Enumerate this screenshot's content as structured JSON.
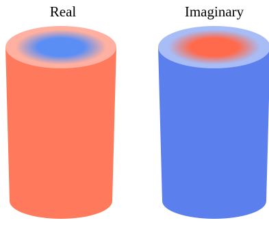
{
  "panels": [
    {
      "title": "Real",
      "side_color": "#ff7a5c",
      "top_rim_color": "#ffb0a0",
      "top_center_color": "#5a8ef5"
    },
    {
      "title": "Imaginary",
      "side_color": "#5b80ee",
      "top_rim_color": "#a8bcf5",
      "top_center_color": "#ff6a4c"
    }
  ]
}
